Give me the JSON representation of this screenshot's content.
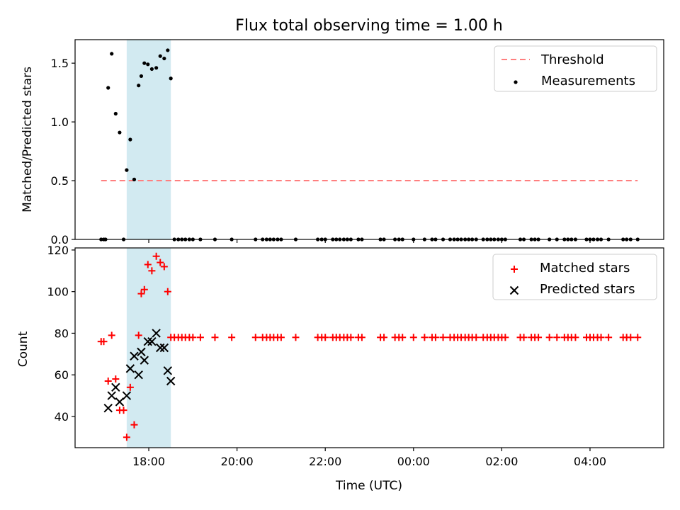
{
  "chart_data": {
    "type": "scatter",
    "title": "Flux total observing time = 1.00 h",
    "xlabel": "Time (UTC)",
    "shaded_interval": [
      17.5,
      18.5
    ],
    "shade_color": "#add8e6",
    "x_ticks": [
      {
        "v": 18,
        "label": "18:00"
      },
      {
        "v": 20,
        "label": "20:00"
      },
      {
        "v": 22,
        "label": "22:00"
      },
      {
        "v": 24,
        "label": "00:00"
      },
      {
        "v": 26,
        "label": "02:00"
      },
      {
        "v": 28,
        "label": "04:00"
      }
    ],
    "panels": [
      {
        "ylabel": "Matched/Predicted stars",
        "xlim": [
          16.33,
          29.67
        ],
        "ylim": [
          0,
          1.7
        ],
        "y_ticks": [
          {
            "v": 0,
            "label": "0.0"
          },
          {
            "v": 0.5,
            "label": "0.5"
          },
          {
            "v": 1.0,
            "label": "1.0"
          },
          {
            "v": 1.5,
            "label": "1.5"
          }
        ],
        "legend": [
          {
            "label": "Threshold",
            "kind": "dashed-line",
            "color": "#ff7f7f"
          },
          {
            "label": "Measurements",
            "kind": "dot",
            "color": "#000000"
          }
        ],
        "threshold": {
          "name": "Threshold",
          "y": 0.5,
          "x_range": [
            16.92,
            29.08
          ],
          "color": "#ff7f7f"
        },
        "measurements": {
          "name": "Measurements",
          "color": "#000000",
          "points": [
            [
              16.92,
              0
            ],
            [
              16.98,
              0
            ],
            [
              17.02,
              0
            ],
            [
              17.08,
              1.29
            ],
            [
              17.16,
              1.58
            ],
            [
              17.25,
              1.07
            ],
            [
              17.34,
              0.91
            ],
            [
              17.43,
              0
            ],
            [
              17.5,
              0.59
            ],
            [
              17.58,
              0.85
            ],
            [
              17.67,
              0.51
            ],
            [
              17.77,
              1.31
            ],
            [
              17.83,
              1.39
            ],
            [
              17.9,
              1.5
            ],
            [
              17.98,
              1.49
            ],
            [
              18.07,
              1.45
            ],
            [
              18.17,
              1.46
            ],
            [
              18.26,
              1.56
            ],
            [
              18.35,
              1.54
            ],
            [
              18.43,
              1.61
            ],
            [
              18.5,
              1.37
            ],
            [
              18.58,
              0
            ],
            [
              18.67,
              0
            ],
            [
              18.75,
              0
            ],
            [
              18.83,
              0
            ],
            [
              18.92,
              0
            ],
            [
              19.0,
              0
            ],
            [
              19.17,
              0
            ],
            [
              19.5,
              0
            ],
            [
              19.88,
              0
            ],
            [
              20.42,
              0
            ],
            [
              20.58,
              0
            ],
            [
              20.67,
              0
            ],
            [
              20.75,
              0
            ],
            [
              20.83,
              0
            ],
            [
              20.92,
              0
            ],
            [
              21.0,
              0
            ],
            [
              21.33,
              0
            ],
            [
              21.83,
              0
            ],
            [
              21.92,
              0
            ],
            [
              22.0,
              0
            ],
            [
              22.17,
              0
            ],
            [
              22.25,
              0
            ],
            [
              22.33,
              0
            ],
            [
              22.42,
              0
            ],
            [
              22.5,
              0
            ],
            [
              22.58,
              0
            ],
            [
              22.75,
              0
            ],
            [
              22.83,
              0
            ],
            [
              23.25,
              0
            ],
            [
              23.33,
              0
            ],
            [
              23.58,
              0
            ],
            [
              23.67,
              0
            ],
            [
              23.75,
              0
            ],
            [
              24.0,
              0
            ],
            [
              24.25,
              0
            ],
            [
              24.42,
              0
            ],
            [
              24.5,
              0
            ],
            [
              24.67,
              0
            ],
            [
              24.83,
              0
            ],
            [
              24.92,
              0
            ],
            [
              25.0,
              0
            ],
            [
              25.08,
              0
            ],
            [
              25.17,
              0
            ],
            [
              25.25,
              0
            ],
            [
              25.33,
              0
            ],
            [
              25.42,
              0
            ],
            [
              25.58,
              0
            ],
            [
              25.67,
              0
            ],
            [
              25.75,
              0
            ],
            [
              25.83,
              0
            ],
            [
              25.92,
              0
            ],
            [
              26.0,
              0
            ],
            [
              26.08,
              0
            ],
            [
              26.42,
              0
            ],
            [
              26.5,
              0
            ],
            [
              26.67,
              0
            ],
            [
              26.75,
              0
            ],
            [
              26.83,
              0
            ],
            [
              27.08,
              0
            ],
            [
              27.25,
              0
            ],
            [
              27.42,
              0
            ],
            [
              27.5,
              0
            ],
            [
              27.58,
              0
            ],
            [
              27.67,
              0
            ],
            [
              27.92,
              0
            ],
            [
              28.0,
              0
            ],
            [
              28.08,
              0
            ],
            [
              28.17,
              0
            ],
            [
              28.25,
              0
            ],
            [
              28.42,
              0
            ],
            [
              28.75,
              0
            ],
            [
              28.83,
              0
            ],
            [
              28.92,
              0
            ],
            [
              29.08,
              0
            ]
          ]
        }
      },
      {
        "ylabel": "Count",
        "xlim": [
          16.33,
          29.67
        ],
        "ylim": [
          25,
          121
        ],
        "y_ticks": [
          {
            "v": 40,
            "label": "40"
          },
          {
            "v": 60,
            "label": "60"
          },
          {
            "v": 80,
            "label": "80"
          },
          {
            "v": 100,
            "label": "100"
          },
          {
            "v": 120,
            "label": "120"
          }
        ],
        "legend": [
          {
            "label": "Matched stars",
            "kind": "plus",
            "color": "#ff0000"
          },
          {
            "label": "Predicted stars",
            "kind": "x",
            "color": "#000000"
          }
        ],
        "series": [
          {
            "name": "Matched stars",
            "marker": "plus",
            "color": "#ff0000",
            "points": [
              [
                16.92,
                76
              ],
              [
                16.98,
                76
              ],
              [
                17.08,
                57
              ],
              [
                17.16,
                79
              ],
              [
                17.25,
                58
              ],
              [
                17.34,
                43
              ],
              [
                17.43,
                43
              ],
              [
                17.5,
                30
              ],
              [
                17.58,
                54
              ],
              [
                17.67,
                36
              ],
              [
                17.77,
                79
              ],
              [
                17.83,
                99
              ],
              [
                17.9,
                101
              ],
              [
                17.98,
                113
              ],
              [
                18.07,
                110
              ],
              [
                18.17,
                117
              ],
              [
                18.26,
                114
              ],
              [
                18.35,
                112
              ],
              [
                18.43,
                100
              ],
              [
                18.5,
                78
              ],
              [
                18.58,
                78
              ],
              [
                18.67,
                78
              ],
              [
                18.75,
                78
              ],
              [
                18.83,
                78
              ],
              [
                18.92,
                78
              ],
              [
                19.0,
                78
              ],
              [
                19.17,
                78
              ],
              [
                19.5,
                78
              ],
              [
                19.88,
                78
              ],
              [
                20.42,
                78
              ],
              [
                20.58,
                78
              ],
              [
                20.67,
                78
              ],
              [
                20.75,
                78
              ],
              [
                20.83,
                78
              ],
              [
                20.92,
                78
              ],
              [
                21.0,
                78
              ],
              [
                21.33,
                78
              ],
              [
                21.83,
                78
              ],
              [
                21.92,
                78
              ],
              [
                22.0,
                78
              ],
              [
                22.17,
                78
              ],
              [
                22.25,
                78
              ],
              [
                22.33,
                78
              ],
              [
                22.42,
                78
              ],
              [
                22.5,
                78
              ],
              [
                22.58,
                78
              ],
              [
                22.75,
                78
              ],
              [
                22.83,
                78
              ],
              [
                23.25,
                78
              ],
              [
                23.33,
                78
              ],
              [
                23.58,
                78
              ],
              [
                23.67,
                78
              ],
              [
                23.75,
                78
              ],
              [
                24.0,
                78
              ],
              [
                24.25,
                78
              ],
              [
                24.42,
                78
              ],
              [
                24.5,
                78
              ],
              [
                24.67,
                78
              ],
              [
                24.83,
                78
              ],
              [
                24.92,
                78
              ],
              [
                25.0,
                78
              ],
              [
                25.08,
                78
              ],
              [
                25.17,
                78
              ],
              [
                25.25,
                78
              ],
              [
                25.33,
                78
              ],
              [
                25.42,
                78
              ],
              [
                25.58,
                78
              ],
              [
                25.67,
                78
              ],
              [
                25.75,
                78
              ],
              [
                25.83,
                78
              ],
              [
                25.92,
                78
              ],
              [
                26.0,
                78
              ],
              [
                26.08,
                78
              ],
              [
                26.42,
                78
              ],
              [
                26.5,
                78
              ],
              [
                26.67,
                78
              ],
              [
                26.75,
                78
              ],
              [
                26.83,
                78
              ],
              [
                27.08,
                78
              ],
              [
                27.25,
                78
              ],
              [
                27.42,
                78
              ],
              [
                27.5,
                78
              ],
              [
                27.58,
                78
              ],
              [
                27.67,
                78
              ],
              [
                27.92,
                78
              ],
              [
                28.0,
                78
              ],
              [
                28.08,
                78
              ],
              [
                28.17,
                78
              ],
              [
                28.25,
                78
              ],
              [
                28.42,
                78
              ],
              [
                28.75,
                78
              ],
              [
                28.83,
                78
              ],
              [
                28.92,
                78
              ],
              [
                29.08,
                78
              ]
            ]
          },
          {
            "name": "Predicted stars",
            "marker": "x",
            "color": "#000000",
            "points": [
              [
                17.08,
                44
              ],
              [
                17.16,
                50
              ],
              [
                17.25,
                54
              ],
              [
                17.34,
                47
              ],
              [
                17.5,
                50
              ],
              [
                17.58,
                63
              ],
              [
                17.67,
                69
              ],
              [
                17.77,
                60
              ],
              [
                17.83,
                71
              ],
              [
                17.9,
                67
              ],
              [
                17.98,
                76
              ],
              [
                18.07,
                76
              ],
              [
                18.17,
                80
              ],
              [
                18.26,
                73
              ],
              [
                18.35,
                73
              ],
              [
                18.43,
                62
              ],
              [
                18.5,
                57
              ]
            ]
          }
        ]
      }
    ]
  }
}
